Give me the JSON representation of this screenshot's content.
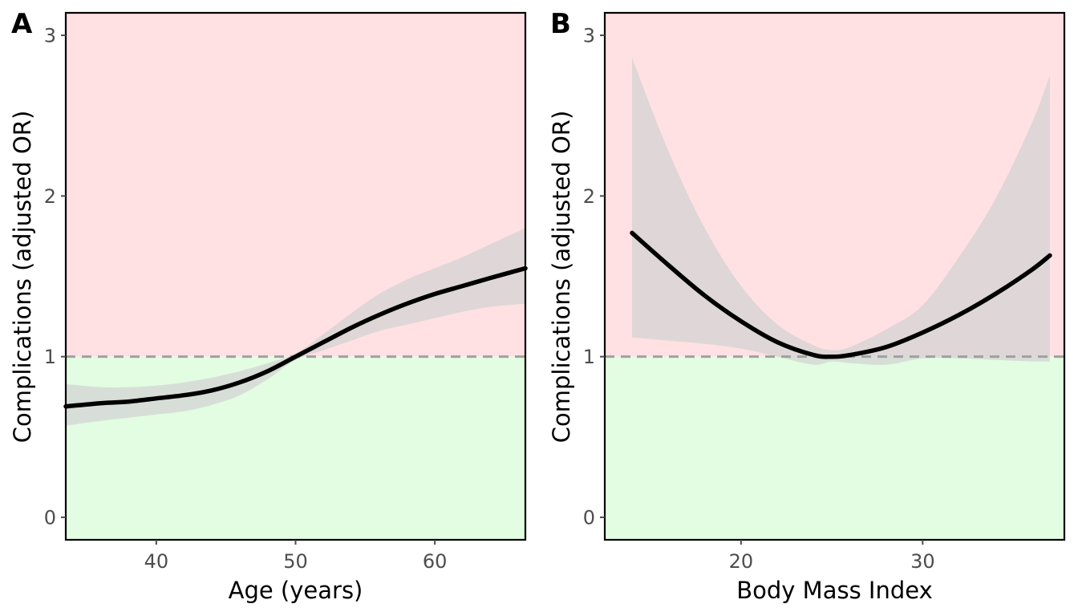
{
  "colors": {
    "harm_region": "#ffe0e3",
    "benefit_region": "#e2fde2",
    "ci_band": "#d3d3d3",
    "curve": "#000000",
    "reference_line": "#a0a0a0",
    "axis": "#000000",
    "tick_text": "#4d4d4d"
  },
  "chart_data": [
    {
      "type": "line",
      "panel_label": "A",
      "xlabel": "Age (years)",
      "ylabel": "Complications (adjusted OR)",
      "xlim": [
        33.5,
        66.5
      ],
      "ylim": [
        -0.14,
        3.14
      ],
      "x_ticks": [
        40,
        50,
        60
      ],
      "y_ticks": [
        0,
        1,
        2,
        3
      ],
      "reference_y": 1,
      "shading": {
        "above_reference": "harm_region",
        "below_reference": "benefit_region"
      },
      "grid": false,
      "legend": "none",
      "series": [
        {
          "x": [
            33.5,
            36,
            38,
            40,
            42,
            44,
            46,
            48,
            50,
            52,
            54,
            56,
            58,
            60,
            62,
            64,
            66.5
          ],
          "y": [
            0.69,
            0.71,
            0.72,
            0.74,
            0.76,
            0.79,
            0.84,
            0.91,
            1.0,
            1.09,
            1.18,
            1.26,
            1.33,
            1.39,
            1.44,
            1.49,
            1.55
          ],
          "lower": [
            0.57,
            0.6,
            0.62,
            0.64,
            0.66,
            0.7,
            0.76,
            0.86,
            0.98,
            1.04,
            1.1,
            1.16,
            1.2,
            1.24,
            1.28,
            1.31,
            1.33
          ],
          "upper": [
            0.83,
            0.81,
            0.81,
            0.82,
            0.84,
            0.87,
            0.91,
            0.96,
            1.02,
            1.14,
            1.27,
            1.39,
            1.48,
            1.55,
            1.62,
            1.7,
            1.8
          ]
        }
      ]
    },
    {
      "type": "line",
      "panel_label": "B",
      "xlabel": "Body Mass Index",
      "ylabel": "Complications (adjusted OR)",
      "xlim": [
        12.5,
        37.8
      ],
      "ylim": [
        -0.14,
        3.14
      ],
      "x_ticks": [
        20,
        30
      ],
      "y_ticks": [
        0,
        1,
        2,
        3
      ],
      "reference_y": 1,
      "shading": {
        "above_reference": "harm_region",
        "below_reference": "benefit_region"
      },
      "grid": false,
      "legend": "none",
      "series": [
        {
          "x": [
            14,
            16,
            18,
            20,
            22,
            24,
            25,
            26,
            28,
            30,
            32,
            34,
            36,
            37
          ],
          "y": [
            1.77,
            1.57,
            1.38,
            1.22,
            1.09,
            1.01,
            1.0,
            1.01,
            1.06,
            1.15,
            1.26,
            1.39,
            1.54,
            1.63
          ],
          "lower": [
            1.12,
            1.1,
            1.08,
            1.05,
            1.0,
            0.95,
            0.97,
            0.96,
            0.95,
            0.99,
            0.99,
            0.98,
            0.97,
            0.97
          ],
          "upper": [
            2.86,
            2.28,
            1.8,
            1.44,
            1.2,
            1.07,
            1.04,
            1.06,
            1.17,
            1.32,
            1.62,
            1.98,
            2.45,
            2.75
          ]
        }
      ]
    }
  ]
}
